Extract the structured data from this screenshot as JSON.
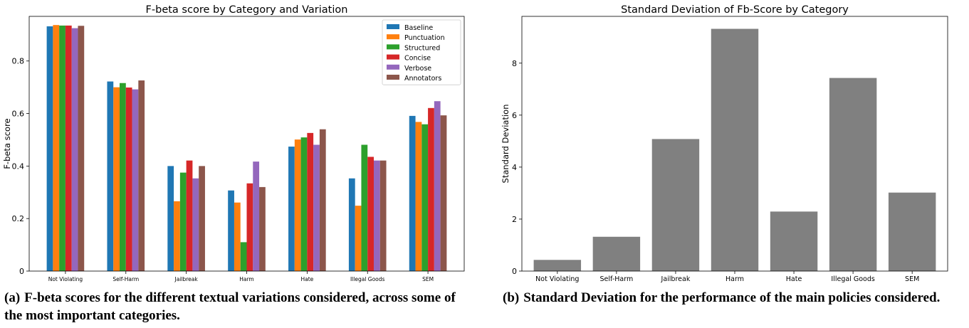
{
  "chart_data": [
    {
      "type": "bar",
      "title": "F-beta score by Category and Variation",
      "xlabel": "",
      "ylabel": "F-beta score",
      "ylim": [
        0,
        0.97
      ],
      "yticks": [
        "0",
        "0.2",
        "0.4",
        "0.6",
        "0.8"
      ],
      "categories": [
        "Not Violating",
        "Self-Harm",
        "Jailbreak",
        "Harm",
        "Hate",
        "Illegal Goods",
        "SEM"
      ],
      "series": [
        {
          "name": "Baseline",
          "color": "#1f77b4",
          "values": [
            0.932,
            0.722,
            0.4,
            0.307,
            0.474,
            0.353,
            0.591
          ]
        },
        {
          "name": "Punctuation",
          "color": "#ff7f0e",
          "values": [
            0.937,
            0.7,
            0.266,
            0.261,
            0.501,
            0.249,
            0.568
          ]
        },
        {
          "name": "Structured",
          "color": "#2ca02c",
          "values": [
            0.935,
            0.716,
            0.375,
            0.11,
            0.509,
            0.481,
            0.559
          ]
        },
        {
          "name": "Concise",
          "color": "#d62728",
          "values": [
            0.935,
            0.699,
            0.421,
            0.334,
            0.526,
            0.435,
            0.621
          ]
        },
        {
          "name": "Verbose",
          "color": "#9467bd",
          "values": [
            0.925,
            0.692,
            0.353,
            0.417,
            0.481,
            0.421,
            0.647
          ]
        },
        {
          "name": "Annotators",
          "color": "#8c564b",
          "values": [
            0.934,
            0.726,
            0.4,
            0.32,
            0.54,
            0.421,
            0.593
          ]
        }
      ],
      "legend": "top-right",
      "grid": false
    },
    {
      "type": "bar",
      "title": "Standard Deviation of Fb-Score by Category",
      "xlabel": "",
      "ylabel": "Standard Deviation",
      "ylim": [
        0,
        9.8
      ],
      "yticks": [
        "0",
        "2",
        "4",
        "6",
        "8"
      ],
      "categories": [
        "Not Violating",
        "Self-Harm",
        "Jailbreak",
        "Harm",
        "Hate",
        "Illegal Goods",
        "SEM"
      ],
      "series": [
        {
          "color": "#808080",
          "values": [
            0.43,
            1.32,
            5.08,
            9.32,
            2.29,
            7.43,
            3.02
          ]
        }
      ],
      "legend": "none",
      "grid": false
    }
  ],
  "captions": {
    "a_tag": "(a)",
    "a_text": "F-beta scores for the different textual variations considered, across some of the most important categories.",
    "b_tag": "(b)",
    "b_text": "Standard Deviation for the performance of the main policies considered."
  }
}
